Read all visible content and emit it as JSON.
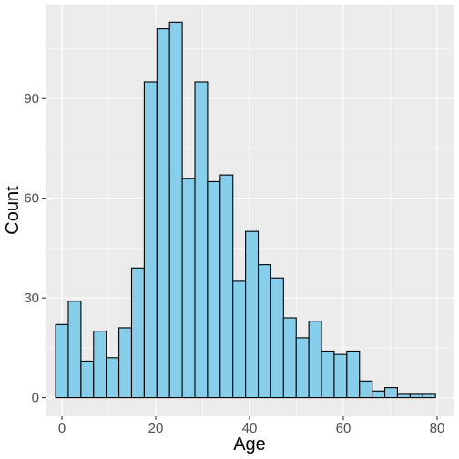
{
  "chart_data": {
    "type": "bar",
    "title": "",
    "xlabel": "Age",
    "ylabel": "Count",
    "xlim": [
      -3.5,
      83.5
    ],
    "ylim": [
      -5.6,
      118.3
    ],
    "x_ticks": [
      0,
      20,
      40,
      60,
      80
    ],
    "y_ticks": [
      0,
      30,
      60,
      90
    ],
    "bin_width": 2.7,
    "bins": [
      {
        "start": -1.35,
        "end": 1.35,
        "count": 22
      },
      {
        "start": 1.35,
        "end": 4.05,
        "count": 29
      },
      {
        "start": 4.05,
        "end": 6.75,
        "count": 11
      },
      {
        "start": 6.75,
        "end": 9.45,
        "count": 20
      },
      {
        "start": 9.45,
        "end": 12.15,
        "count": 12
      },
      {
        "start": 12.15,
        "end": 14.85,
        "count": 21
      },
      {
        "start": 14.85,
        "end": 17.55,
        "count": 39
      },
      {
        "start": 17.55,
        "end": 20.25,
        "count": 95
      },
      {
        "start": 20.25,
        "end": 22.95,
        "count": 111
      },
      {
        "start": 22.95,
        "end": 25.65,
        "count": 113
      },
      {
        "start": 25.65,
        "end": 28.35,
        "count": 66
      },
      {
        "start": 28.35,
        "end": 31.05,
        "count": 95
      },
      {
        "start": 31.05,
        "end": 33.75,
        "count": 65
      },
      {
        "start": 33.75,
        "end": 36.45,
        "count": 67
      },
      {
        "start": 36.45,
        "end": 39.15,
        "count": 35
      },
      {
        "start": 39.15,
        "end": 41.85,
        "count": 50
      },
      {
        "start": 41.85,
        "end": 44.55,
        "count": 40
      },
      {
        "start": 44.55,
        "end": 47.25,
        "count": 36
      },
      {
        "start": 47.25,
        "end": 49.95,
        "count": 24
      },
      {
        "start": 49.95,
        "end": 52.65,
        "count": 18
      },
      {
        "start": 52.65,
        "end": 55.35,
        "count": 23
      },
      {
        "start": 55.35,
        "end": 58.05,
        "count": 14
      },
      {
        "start": 58.05,
        "end": 60.75,
        "count": 13
      },
      {
        "start": 60.75,
        "end": 63.45,
        "count": 14
      },
      {
        "start": 63.45,
        "end": 66.15,
        "count": 5
      },
      {
        "start": 66.15,
        "end": 68.85,
        "count": 2
      },
      {
        "start": 68.85,
        "end": 71.55,
        "count": 3
      },
      {
        "start": 71.55,
        "end": 74.25,
        "count": 1
      },
      {
        "start": 74.25,
        "end": 76.95,
        "count": 1
      },
      {
        "start": 76.95,
        "end": 79.65,
        "count": 1
      }
    ],
    "grid": true,
    "colors": {
      "bar_fill": "#87ceeb",
      "bar_stroke": "#000000",
      "panel_bg": "#ebebeb",
      "grid_major": "#ffffff",
      "tick_text": "#4d4d4d",
      "tick_mark": "#333333"
    }
  }
}
